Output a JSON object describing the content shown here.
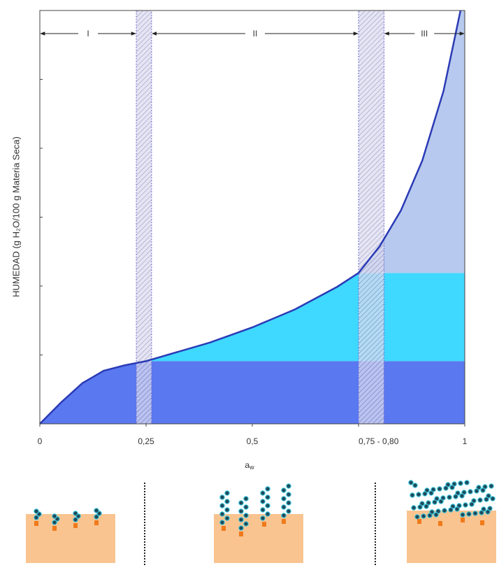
{
  "chart_data": {
    "type": "line",
    "ylabel": "HUMEDAD (g H₂O/100 g Materia Seca)",
    "xlabel": {
      "main": "a",
      "sub": "w"
    },
    "xlim": [
      0,
      1
    ],
    "ylim": [
      0,
      6
    ],
    "xticks": [
      0,
      {
        "value": 0.25,
        "label": "0,25"
      },
      {
        "value": 0.5,
        "label": "0,5"
      },
      {
        "value": 0.75,
        "label": "0,75 - 0,80"
      },
      1
    ],
    "yticks": [
      1,
      2,
      3,
      4,
      5
    ],
    "x": [
      0,
      0.05,
      0.1,
      0.15,
      0.2,
      0.25,
      0.3,
      0.4,
      0.5,
      0.6,
      0.7,
      0.75,
      0.8,
      0.85,
      0.9,
      0.95,
      0.99
    ],
    "values": [
      0,
      0.31,
      0.59,
      0.77,
      0.85,
      0.91,
      1.0,
      1.18,
      1.4,
      1.66,
      1.99,
      2.19,
      2.58,
      3.1,
      3.82,
      4.83,
      6.0
    ],
    "color": "#2b3bb5",
    "levels": [
      0.91,
      2.19
    ],
    "region_colors": [
      "#5a78f0",
      "#3fd8ff",
      "#b7c9ee"
    ],
    "bands": [
      [
        0.227,
        0.263
      ],
      [
        0.75,
        0.81
      ]
    ],
    "zones": [
      {
        "label": "I",
        "from": 0,
        "to": 0.227
      },
      {
        "label": "II",
        "from": 0.263,
        "to": 0.75
      },
      {
        "label": "III",
        "from": 0.81,
        "to": 1
      }
    ]
  }
}
